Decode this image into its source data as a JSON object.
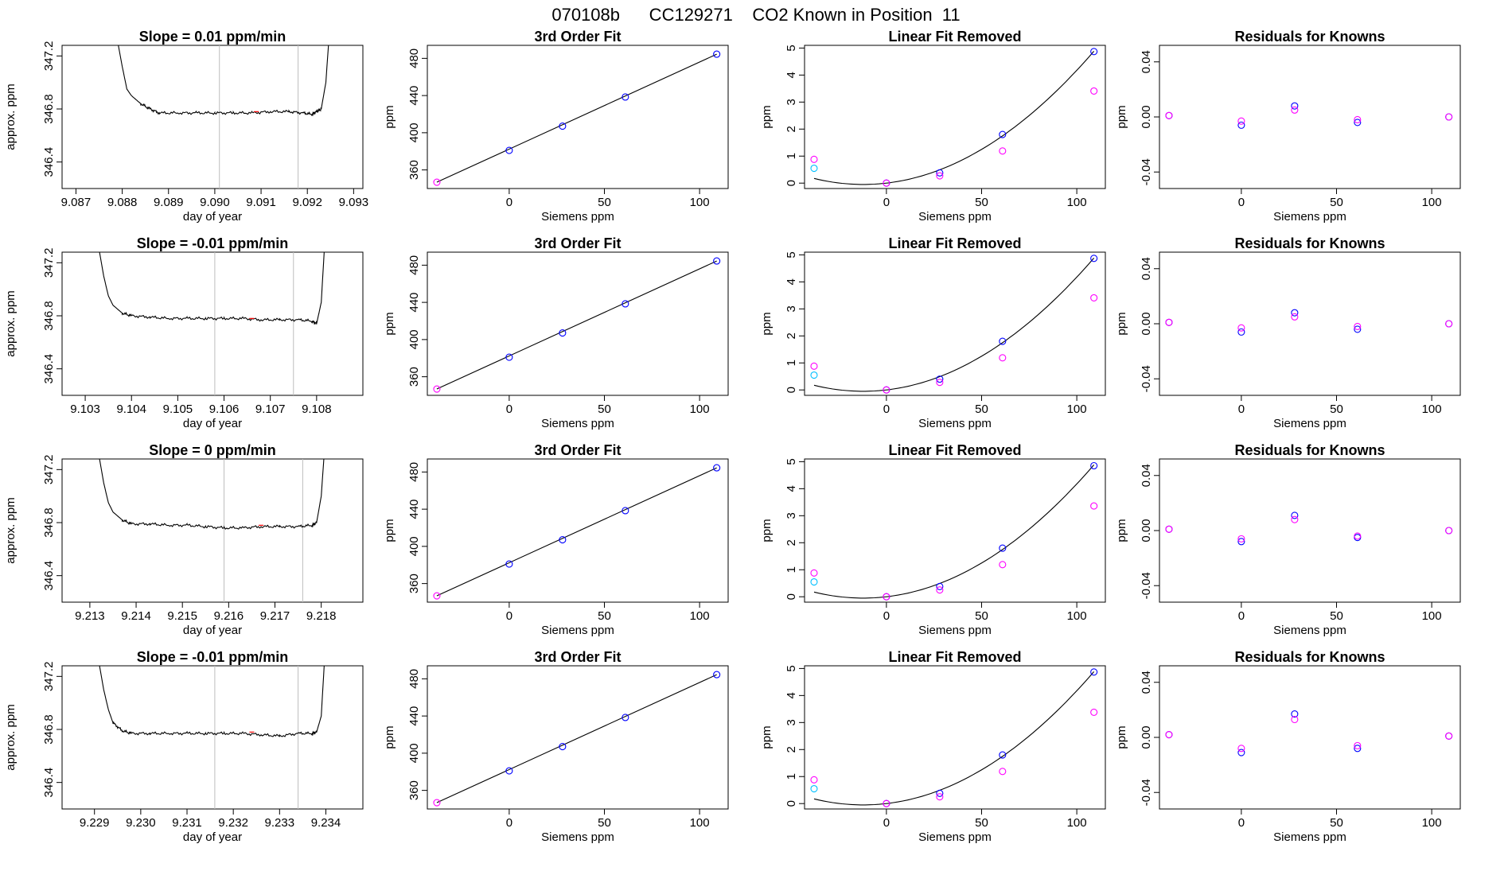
{
  "figure_title": "070108b      CC129271    CO2 Known in Position  11",
  "colors": {
    "axis": "#000000",
    "trace": "#000000",
    "window_line": "#bdbdbd",
    "marker_red": "#ff0000",
    "point_blue": "#0000ff",
    "point_magenta": "#ff00ff",
    "point_cyan": "#00bfff",
    "point_purple": "#8a2be2"
  },
  "common": {
    "time_xlabel": "day of year",
    "time_ylabel": "approx. ppm",
    "fit_title": "3rd Order Fit",
    "fit_xlabel": "Siemens ppm",
    "fit_ylabel": "ppm",
    "lin_title": "Linear Fit Removed",
    "lin_ylabel": "ppm",
    "res_title": "Residuals for Knowns",
    "res_ylabel": "ppm"
  },
  "chart_data": [
    {
      "type": "line",
      "title": "Slope =  0.01  ppm/min",
      "xlabel": "day of year",
      "ylabel": "approx. ppm",
      "xlim": [
        9.0867,
        9.0932
      ],
      "ylim": [
        346.2,
        347.28
      ],
      "xticks": [
        "9.087",
        "9.088",
        "9.089",
        "9.090",
        "9.091",
        "9.092",
        "9.093"
      ],
      "yticks": [
        "346.4",
        "346.8",
        "347.2"
      ],
      "vlines": [
        9.0901,
        9.0918
      ],
      "red_marker": 9.0909,
      "series": [
        {
          "x": [
            9.0878,
            9.088,
            9.0881,
            9.0882,
            9.0884,
            9.0886,
            9.0888,
            9.0892,
            9.0896,
            9.09,
            9.0904,
            9.0908,
            9.0912,
            9.0916,
            9.0919,
            9.0921,
            9.0922,
            9.0923,
            9.0924,
            9.0925
          ],
          "y": [
            347.5,
            347.12,
            346.95,
            346.9,
            346.84,
            346.8,
            346.77,
            346.77,
            346.77,
            346.77,
            346.77,
            346.77,
            346.78,
            346.78,
            346.77,
            346.76,
            346.78,
            346.8,
            347.0,
            347.5
          ]
        }
      ]
    },
    {
      "type": "scatter",
      "title": "3rd Order Fit",
      "xlabel": "Siemens ppm",
      "ylabel": "ppm",
      "xlim": [
        -43,
        115
      ],
      "ylim": [
        340,
        494
      ],
      "xticks": [
        "0",
        "50",
        "100"
      ],
      "yticks": [
        "360",
        "400",
        "440",
        "480"
      ],
      "fit_line": {
        "x": [
          -38,
          109
        ],
        "y": [
          346.8,
          484.5
        ]
      },
      "series": [
        {
          "name": "",
          "color": "blue",
          "x": [
            0,
            28,
            61,
            109
          ],
          "y": [
            381.0,
            407.1,
            438.4,
            484.5
          ]
        },
        {
          "name": "",
          "color": "magenta",
          "x": [
            -38
          ],
          "y": [
            346.8
          ]
        }
      ]
    },
    {
      "type": "scatter",
      "title": "Linear Fit Removed",
      "xlabel": "Siemens ppm",
      "ylabel": "ppm",
      "xlim": [
        -43,
        115
      ],
      "ylim": [
        -0.2,
        5.1
      ],
      "xticks": [
        "0",
        "50",
        "100"
      ],
      "yticks": [
        "0",
        "1",
        "2",
        "3",
        "4",
        "5"
      ],
      "curve": {
        "x": [
          -38,
          0,
          28,
          61,
          109
        ],
        "y": [
          0.9,
          0.0,
          0.35,
          1.8,
          4.87
        ]
      },
      "series": [
        {
          "name": "",
          "color": "blue",
          "x": [
            0,
            28,
            61,
            109
          ],
          "y": [
            0.0,
            0.38,
            1.8,
            4.87
          ]
        },
        {
          "name": "",
          "color": "magenta",
          "x": [
            -38,
            0,
            28,
            61,
            109
          ],
          "y": [
            0.88,
            0.0,
            0.27,
            1.19,
            3.41
          ]
        },
        {
          "name": "",
          "color": "cyan",
          "x": [
            -38
          ],
          "y": [
            0.55
          ]
        }
      ]
    },
    {
      "type": "scatter",
      "title": "Residuals for Knowns",
      "xlabel": "Siemens ppm",
      "ylabel": "ppm",
      "xlim": [
        -43,
        115
      ],
      "ylim": [
        -0.052,
        0.052
      ],
      "xticks": [
        "0",
        "50",
        "100"
      ],
      "yticks": [
        "-0.04",
        "0.00",
        "0.04"
      ],
      "series": [
        {
          "name": "",
          "color": "blue",
          "x": [
            -38,
            0,
            28,
            61,
            109
          ],
          "y": [
            0.001,
            -0.006,
            0.008,
            -0.004,
            0.0
          ]
        },
        {
          "name": "",
          "color": "magenta",
          "x": [
            -38,
            0,
            28,
            61,
            109
          ],
          "y": [
            0.001,
            -0.003,
            0.005,
            -0.002,
            0.0
          ]
        }
      ]
    },
    {
      "type": "line",
      "title": "Slope =  -0.01  ppm/min",
      "xlabel": "day of year",
      "ylabel": "approx. ppm",
      "xlim": [
        9.1025,
        9.109
      ],
      "ylim": [
        346.2,
        347.28
      ],
      "xticks": [
        "9.103",
        "9.104",
        "9.105",
        "9.106",
        "9.107",
        "9.108"
      ],
      "yticks": [
        "346.4",
        "346.8",
        "347.2"
      ],
      "vlines": [
        9.1058,
        9.1075
      ],
      "red_marker": 9.1066,
      "series": [
        {
          "x": [
            9.1032,
            9.1034,
            9.1035,
            9.1036,
            9.1038,
            9.104,
            9.1044,
            9.1048,
            9.1052,
            9.1056,
            9.106,
            9.1064,
            9.1068,
            9.1072,
            9.1076,
            9.1079,
            9.108,
            9.1081,
            9.1082
          ],
          "y": [
            347.5,
            347.1,
            346.95,
            346.88,
            346.82,
            346.8,
            346.79,
            346.78,
            346.78,
            346.78,
            346.78,
            346.78,
            346.77,
            346.77,
            346.77,
            346.76,
            346.74,
            346.9,
            347.5
          ]
        }
      ]
    },
    {
      "type": "scatter",
      "title": "3rd Order Fit",
      "xlabel": "Siemens ppm",
      "ylabel": "ppm",
      "xlim": [
        -43,
        115
      ],
      "ylim": [
        340,
        494
      ],
      "xticks": [
        "0",
        "50",
        "100"
      ],
      "yticks": [
        "360",
        "400",
        "440",
        "480"
      ],
      "fit_line": {
        "x": [
          -38,
          109
        ],
        "y": [
          346.8,
          484.5
        ]
      },
      "series": [
        {
          "name": "",
          "color": "blue",
          "x": [
            0,
            28,
            61,
            109
          ],
          "y": [
            381.0,
            407.1,
            438.4,
            484.5
          ]
        },
        {
          "name": "",
          "color": "magenta",
          "x": [
            -38
          ],
          "y": [
            346.8
          ]
        }
      ]
    },
    {
      "type": "scatter",
      "title": "Linear Fit Removed",
      "xlabel": "Siemens ppm",
      "ylabel": "ppm",
      "xlim": [
        -43,
        115
      ],
      "ylim": [
        -0.2,
        5.1
      ],
      "xticks": [
        "0",
        "50",
        "100"
      ],
      "yticks": [
        "0",
        "1",
        "2",
        "3",
        "4",
        "5"
      ],
      "curve": {
        "x": [
          -38,
          0,
          28,
          61,
          109
        ],
        "y": [
          0.9,
          0.0,
          0.35,
          1.8,
          4.87
        ]
      },
      "series": [
        {
          "name": "",
          "color": "blue",
          "x": [
            0,
            28,
            61,
            109
          ],
          "y": [
            0.0,
            0.4,
            1.8,
            4.87
          ]
        },
        {
          "name": "",
          "color": "magenta",
          "x": [
            -38,
            0,
            28,
            61,
            109
          ],
          "y": [
            0.88,
            0.0,
            0.28,
            1.19,
            3.41
          ]
        },
        {
          "name": "",
          "color": "cyan",
          "x": [
            -38
          ],
          "y": [
            0.55
          ]
        }
      ]
    },
    {
      "type": "scatter",
      "title": "Residuals for Knowns",
      "xlabel": "Siemens ppm",
      "ylabel": "ppm",
      "xlim": [
        -43,
        115
      ],
      "ylim": [
        -0.052,
        0.052
      ],
      "xticks": [
        "0",
        "50",
        "100"
      ],
      "yticks": [
        "-0.04",
        "0.00",
        "0.04"
      ],
      "series": [
        {
          "name": "",
          "color": "blue",
          "x": [
            -38,
            0,
            28,
            61,
            109
          ],
          "y": [
            0.001,
            -0.006,
            0.008,
            -0.004,
            0.0
          ]
        },
        {
          "name": "",
          "color": "magenta",
          "x": [
            -38,
            0,
            28,
            61,
            109
          ],
          "y": [
            0.001,
            -0.003,
            0.005,
            -0.002,
            0.0
          ]
        }
      ]
    },
    {
      "type": "line",
      "title": "Slope =  0  ppm/min",
      "xlabel": "day of year",
      "ylabel": "approx. ppm",
      "xlim": [
        9.2124,
        9.2189
      ],
      "ylim": [
        346.2,
        347.28
      ],
      "xticks": [
        "9.213",
        "9.214",
        "9.215",
        "9.216",
        "9.217",
        "9.218"
      ],
      "yticks": [
        "346.4",
        "346.8",
        "347.2"
      ],
      "vlines": [
        9.2159,
        9.2176
      ],
      "red_marker": 9.2167,
      "series": [
        {
          "x": [
            9.2131,
            9.2133,
            9.2134,
            9.2135,
            9.2137,
            9.2139,
            9.2143,
            9.2147,
            9.2151,
            9.2155,
            9.2159,
            9.2163,
            9.2167,
            9.2171,
            9.2175,
            9.2178,
            9.2179,
            9.218,
            9.2181
          ],
          "y": [
            347.5,
            347.1,
            346.95,
            346.88,
            346.82,
            346.79,
            346.79,
            346.78,
            346.78,
            346.77,
            346.76,
            346.76,
            346.77,
            346.77,
            346.77,
            346.78,
            346.8,
            347.0,
            347.5
          ]
        }
      ]
    },
    {
      "type": "scatter",
      "title": "3rd Order Fit",
      "xlabel": "Siemens ppm",
      "ylabel": "ppm",
      "xlim": [
        -43,
        115
      ],
      "ylim": [
        340,
        494
      ],
      "xticks": [
        "0",
        "50",
        "100"
      ],
      "yticks": [
        "360",
        "400",
        "440",
        "480"
      ],
      "fit_line": {
        "x": [
          -38,
          109
        ],
        "y": [
          346.8,
          484.5
        ]
      },
      "series": [
        {
          "name": "",
          "color": "blue",
          "x": [
            0,
            28,
            61,
            109
          ],
          "y": [
            381.0,
            407.1,
            438.4,
            484.5
          ]
        },
        {
          "name": "",
          "color": "magenta",
          "x": [
            -38
          ],
          "y": [
            346.8
          ]
        }
      ]
    },
    {
      "type": "scatter",
      "title": "Linear Fit Removed",
      "xlabel": "Siemens ppm",
      "ylabel": "ppm",
      "xlim": [
        -43,
        115
      ],
      "ylim": [
        -0.2,
        5.1
      ],
      "xticks": [
        "0",
        "50",
        "100"
      ],
      "yticks": [
        "0",
        "1",
        "2",
        "3",
        "4",
        "5"
      ],
      "curve": {
        "x": [
          -38,
          0,
          28,
          61,
          109
        ],
        "y": [
          0.9,
          0.0,
          0.35,
          1.8,
          4.85
        ]
      },
      "series": [
        {
          "name": "",
          "color": "blue",
          "x": [
            0,
            28,
            61,
            109
          ],
          "y": [
            0.0,
            0.38,
            1.8,
            4.85
          ]
        },
        {
          "name": "",
          "color": "magenta",
          "x": [
            -38,
            0,
            28,
            61,
            109
          ],
          "y": [
            0.88,
            0.0,
            0.25,
            1.19,
            3.36
          ]
        },
        {
          "name": "",
          "color": "cyan",
          "x": [
            -38
          ],
          "y": [
            0.55
          ]
        }
      ]
    },
    {
      "type": "scatter",
      "title": "Residuals for Knowns",
      "xlabel": "Siemens ppm",
      "ylabel": "ppm",
      "xlim": [
        -43,
        115
      ],
      "ylim": [
        -0.052,
        0.052
      ],
      "xticks": [
        "0",
        "50",
        "100"
      ],
      "yticks": [
        "-0.04",
        "0.00",
        "0.04"
      ],
      "series": [
        {
          "name": "",
          "color": "blue",
          "x": [
            -38,
            0,
            28,
            61,
            109
          ],
          "y": [
            0.001,
            -0.008,
            0.011,
            -0.005,
            0.0
          ]
        },
        {
          "name": "",
          "color": "magenta",
          "x": [
            -38,
            0,
            28,
            61,
            109
          ],
          "y": [
            0.001,
            -0.006,
            0.008,
            -0.004,
            0.0
          ]
        }
      ]
    },
    {
      "type": "line",
      "title": "Slope =  -0.01  ppm/min",
      "xlabel": "day of year",
      "ylabel": "approx. ppm",
      "xlim": [
        9.2283,
        9.2348
      ],
      "ylim": [
        346.2,
        347.28
      ],
      "xticks": [
        "9.229",
        "9.230",
        "9.231",
        "9.232",
        "9.233",
        "9.234"
      ],
      "yticks": [
        "346.4",
        "346.8",
        "347.2"
      ],
      "vlines": [
        9.2316,
        9.2334
      ],
      "red_marker": 9.2324,
      "series": [
        {
          "x": [
            9.229,
            9.2292,
            9.2293,
            9.2294,
            9.2296,
            9.2298,
            9.2302,
            9.2306,
            9.231,
            9.2314,
            9.2318,
            9.2322,
            9.2326,
            9.233,
            9.2334,
            9.2337,
            9.2338,
            9.2339,
            9.234
          ],
          "y": [
            347.5,
            347.1,
            346.95,
            346.85,
            346.79,
            346.77,
            346.77,
            346.77,
            346.77,
            346.77,
            346.77,
            346.77,
            346.76,
            346.75,
            346.77,
            346.77,
            346.78,
            346.9,
            347.5
          ]
        }
      ]
    },
    {
      "type": "scatter",
      "title": "3rd Order Fit",
      "xlabel": "Siemens ppm",
      "ylabel": "ppm",
      "xlim": [
        -43,
        115
      ],
      "ylim": [
        340,
        494
      ],
      "xticks": [
        "0",
        "50",
        "100"
      ],
      "yticks": [
        "360",
        "400",
        "440",
        "480"
      ],
      "fit_line": {
        "x": [
          -38,
          109
        ],
        "y": [
          346.8,
          484.5
        ]
      },
      "series": [
        {
          "name": "",
          "color": "blue",
          "x": [
            0,
            28,
            61,
            109
          ],
          "y": [
            381.0,
            407.1,
            438.4,
            484.5
          ]
        },
        {
          "name": "",
          "color": "magenta",
          "x": [
            -38
          ],
          "y": [
            346.8
          ]
        }
      ]
    },
    {
      "type": "scatter",
      "title": "Linear Fit Removed",
      "xlabel": "Siemens ppm",
      "ylabel": "ppm",
      "xlim": [
        -43,
        115
      ],
      "ylim": [
        -0.2,
        5.1
      ],
      "xticks": [
        "0",
        "50",
        "100"
      ],
      "yticks": [
        "0",
        "1",
        "2",
        "3",
        "4",
        "5"
      ],
      "curve": {
        "x": [
          -38,
          0,
          28,
          61,
          109
        ],
        "y": [
          0.9,
          0.0,
          0.35,
          1.8,
          4.87
        ]
      },
      "series": [
        {
          "name": "",
          "color": "blue",
          "x": [
            0,
            28,
            61,
            109
          ],
          "y": [
            0.0,
            0.38,
            1.8,
            4.87
          ]
        },
        {
          "name": "",
          "color": "magenta",
          "x": [
            -38,
            0,
            28,
            61,
            109
          ],
          "y": [
            0.88,
            0.0,
            0.25,
            1.19,
            3.38
          ]
        },
        {
          "name": "",
          "color": "cyan",
          "x": [
            -38
          ],
          "y": [
            0.55
          ]
        }
      ]
    },
    {
      "type": "scatter",
      "title": "Residuals for Knowns",
      "xlabel": "Siemens ppm",
      "ylabel": "ppm",
      "xlim": [
        -43,
        115
      ],
      "ylim": [
        -0.052,
        0.052
      ],
      "xticks": [
        "0",
        "50",
        "100"
      ],
      "yticks": [
        "-0.04",
        "0.00",
        "0.04"
      ],
      "series": [
        {
          "name": "",
          "color": "blue",
          "x": [
            -38,
            0,
            28,
            61,
            109
          ],
          "y": [
            0.002,
            -0.011,
            0.017,
            -0.008,
            0.001
          ]
        },
        {
          "name": "",
          "color": "magenta",
          "x": [
            -38,
            0,
            28,
            61,
            109
          ],
          "y": [
            0.002,
            -0.008,
            0.013,
            -0.006,
            0.001
          ]
        }
      ]
    }
  ]
}
